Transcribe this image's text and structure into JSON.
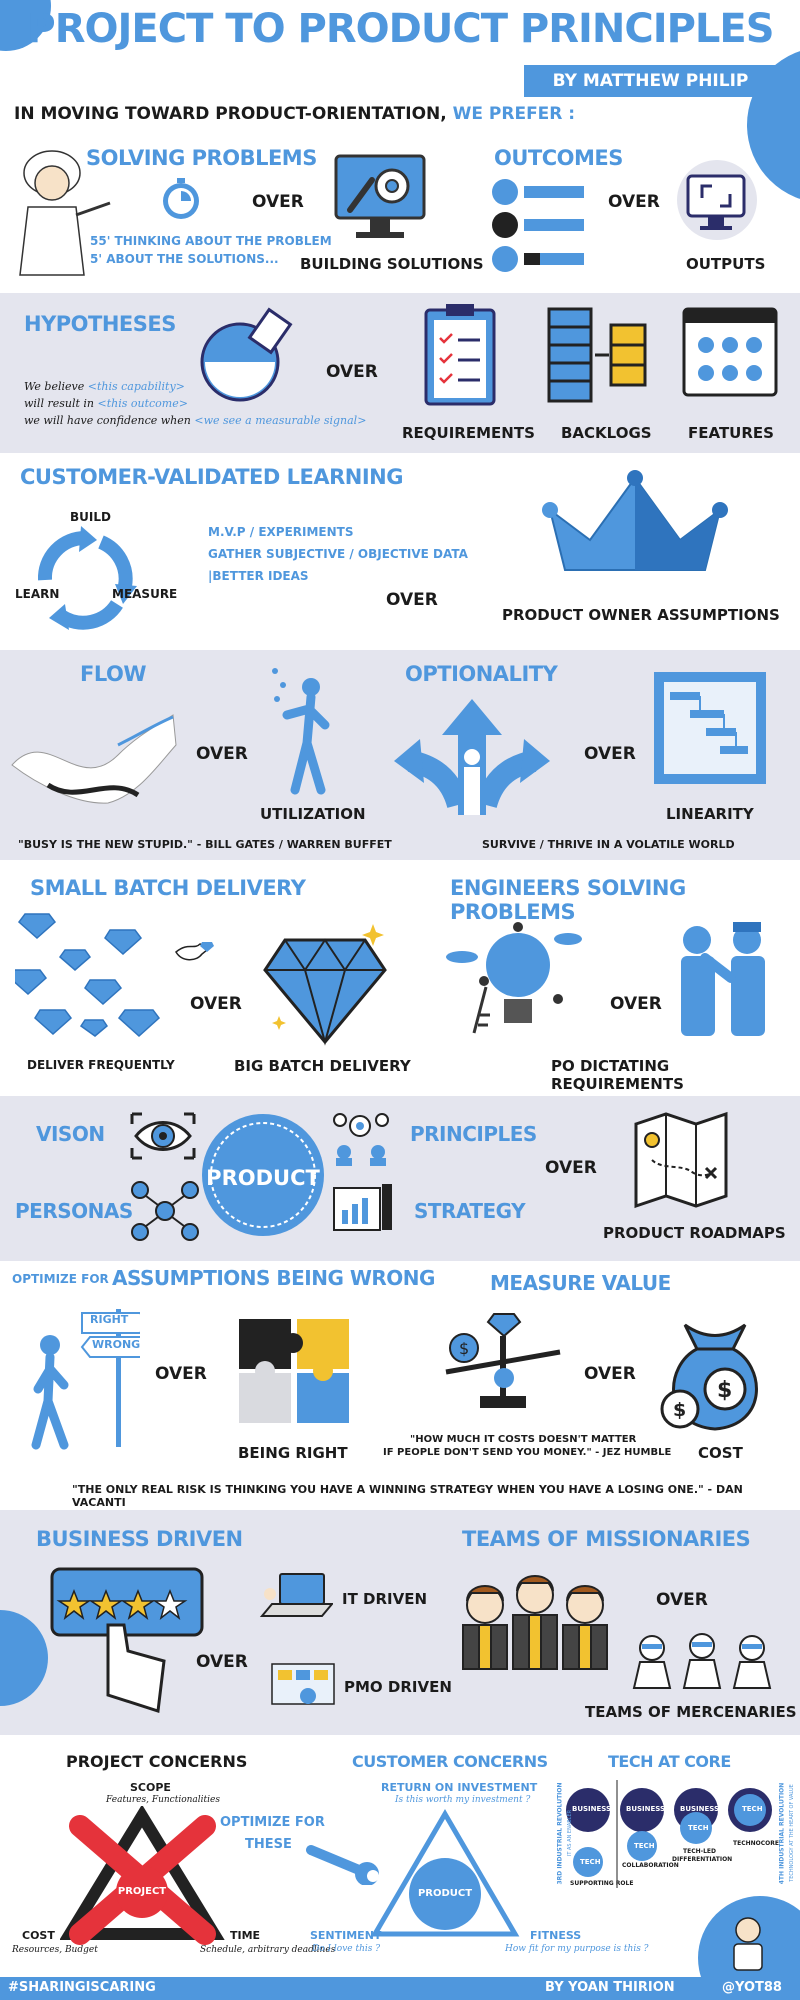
{
  "header": {
    "title": "PROJECT TO PRODUCT PRINCIPLES",
    "byline": "BY MATTHEW PHILIP",
    "intro_prefix": "IN MOVING TOWARD PRODUCT-ORIENTATION,",
    "intro_highlight": "WE PREFER :"
  },
  "over": "OVER",
  "row1": {
    "solving_title": "SOLVING PROBLEMS",
    "solving_note1": "55' THINKING ABOUT THE PROBLEM",
    "solving_note2": "5' ABOUT THE SOLUTIONS...",
    "building": "BUILDING SOLUTIONS",
    "outcomes_title": "OUTCOMES",
    "outputs": "OUTPUTS"
  },
  "row2": {
    "hypotheses_title": "HYPOTHESES",
    "line1_a": "We believe",
    "line1_b": "<this capability>",
    "line2_a": "will result in",
    "line2_b": "<this outcome>",
    "line3_a": "we will have confidence when",
    "line3_b": "<we see a measurable signal>",
    "requirements": "REQUIREMENTS",
    "backlogs": "BACKLOGS",
    "features": "FEATURES"
  },
  "row3": {
    "title": "CUSTOMER-VALIDATED LEARNING",
    "build": "BUILD",
    "learn": "LEARN",
    "measure": "MEASURE",
    "item1": "M.V.P / EXPERIMENTS",
    "item2": "GATHER SUBJECTIVE / OBJECTIVE DATA",
    "item3": "|BETTER IDEAS",
    "po_assumptions": "PRODUCT OWNER ASSUMPTIONS"
  },
  "row4": {
    "flow": "FLOW",
    "utilization": "UTILIZATION",
    "quote": "\"BUSY IS THE NEW STUPID.\" - BILL GATES / WARREN BUFFET",
    "optionality": "OPTIONALITY",
    "linearity": "LINEARITY",
    "survive": "SURVIVE / THRIVE IN A VOLATILE WORLD"
  },
  "row5": {
    "small_batch": "SMALL BATCH DELIVERY",
    "deliver": "DELIVER FREQUENTLY",
    "big_batch": "BIG BATCH DELIVERY",
    "engineers": "ENGINEERS SOLVING PROBLEMS",
    "po_dictating": "PO DICTATING REQUIREMENTS"
  },
  "row6": {
    "vision": "VISON",
    "personas": "PERSONAS",
    "product": "PRODUCT",
    "principles": "PRINCIPLES",
    "strategy": "STRATEGY",
    "roadmaps": "PRODUCT ROADMAPS"
  },
  "row7": {
    "optimize_for": "OPTIMIZE FOR",
    "assumptions": "ASSUMPTIONS BEING WRONG",
    "right": "RIGHT",
    "wrong": "WRONG",
    "being_right": "BEING RIGHT",
    "measure_value": "MEASURE VALUE",
    "humble1": "\"HOW MUCH IT COSTS DOESN'T MATTER",
    "humble2": "IF PEOPLE DON'T SEND YOU MONEY.\" - JEZ HUMBLE",
    "cost": "COST",
    "vacanti": "\"THE ONLY REAL RISK IS THINKING YOU HAVE A WINNING STRATEGY WHEN YOU HAVE A LOSING ONE.\" - DAN VACANTI"
  },
  "row8": {
    "business": "BUSINESS DRIVEN",
    "it_driven": "IT DRIVEN",
    "pmo_driven": "PMO DRIVEN",
    "missionaries": "TEAMS OF MISSIONARIES",
    "mercenaries": "TEAMS OF MERCENARIES"
  },
  "row9": {
    "project_concerns": "PROJECT CONCERNS",
    "scope": "SCOPE",
    "scope_sub": "Features, Functionalities",
    "project": "PROJECT",
    "cost": "COST",
    "cost_sub": "Resources, Budget",
    "time": "TIME",
    "time_sub": "Schedule, arbitrary deadlines",
    "optimize1": "OPTIMIZE FOR",
    "optimize2": "THESE",
    "customer_concerns": "CUSTOMER CONCERNS",
    "roi": "RETURN ON INVESTMENT",
    "roi_sub": "Is this worth my investment ?",
    "product": "PRODUCT",
    "sentiment": "SENTIMENT",
    "sentiment_sub": "Do I love this ?",
    "fitness": "FITNESS",
    "fitness_sub": "How fit for my purpose is this ?",
    "tech_core": "TECH AT CORE",
    "business_label": "BUSINESS",
    "tech_label": "TECH",
    "supporting": "SUPPORTING ROLE",
    "collaboration": "COLLABORATION",
    "tech_led": "TECH-LED",
    "differentiation": "DIFFERENTIATION",
    "technocore": "TECHNOCORE",
    "rev3": "3RD INDUSTRIAL REVOLUTION",
    "rev3_sub": "IT AS AN ENABLER",
    "rev4": "4TH INDUSTRIAL REVOLUTION",
    "rev4_sub": "TECHNOLOGY AT THE HEART OF VALUE"
  },
  "footer": {
    "hashtag": "#SHARINGISCARING",
    "author": "BY YOAN THIRION",
    "handle": "@YOT88"
  },
  "colors": {
    "accent": "#4f97dd",
    "band": "#e4e5ee",
    "dark": "#1b1b1b",
    "navy": "#2b2d6a",
    "red": "#e5333b",
    "gold": "#f2c230"
  }
}
